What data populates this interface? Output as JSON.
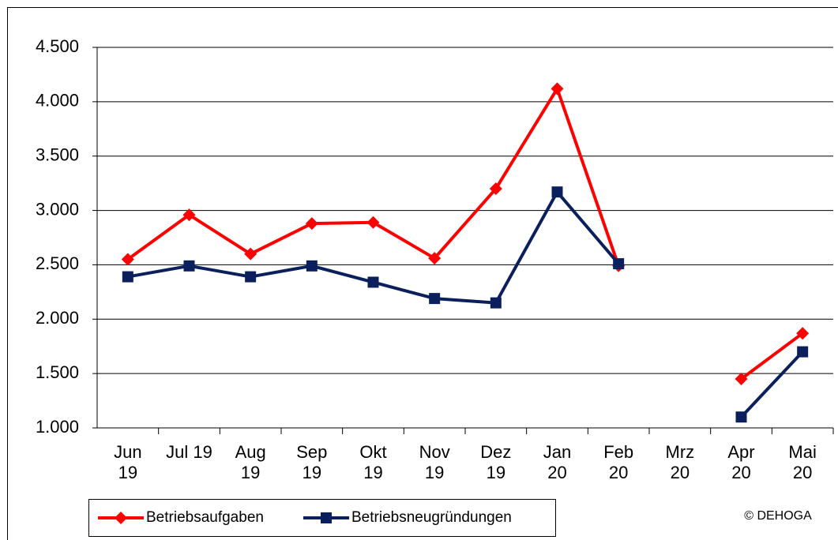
{
  "chart_data": {
    "type": "line",
    "categories": [
      "Jun 19",
      "Jul 19",
      "Aug 19",
      "Sep 19",
      "Okt 19",
      "Nov 19",
      "Dez 19",
      "Jan 20",
      "Feb 20",
      "Mrz 20",
      "Apr 20",
      "Mai 20"
    ],
    "series": [
      {
        "name": "Betriebsaufgaben",
        "color": "#ff0000",
        "marker": "diamond",
        "values": [
          2550,
          2960,
          2600,
          2880,
          2890,
          2560,
          3200,
          4120,
          2490,
          null,
          1450,
          1870
        ]
      },
      {
        "name": "Betriebsneugründungen",
        "color": "#0a1f5c",
        "marker": "square",
        "values": [
          2390,
          2490,
          2390,
          2490,
          2340,
          2190,
          2150,
          3170,
          2510,
          null,
          1100,
          1700
        ]
      }
    ],
    "ylim": [
      1000,
      4500
    ],
    "yticks": [
      {
        "value": 1000,
        "label": "1.000"
      },
      {
        "value": 1500,
        "label": "1.500"
      },
      {
        "value": 2000,
        "label": "2.000"
      },
      {
        "value": 2500,
        "label": "2.500"
      },
      {
        "value": 3000,
        "label": "3.000"
      },
      {
        "value": 3500,
        "label": "3.500"
      },
      {
        "value": 4000,
        "label": "4.000"
      },
      {
        "value": 4500,
        "label": "4.500"
      }
    ],
    "grid": true,
    "legend": "bottom",
    "annotation": "© DEHOGA"
  }
}
